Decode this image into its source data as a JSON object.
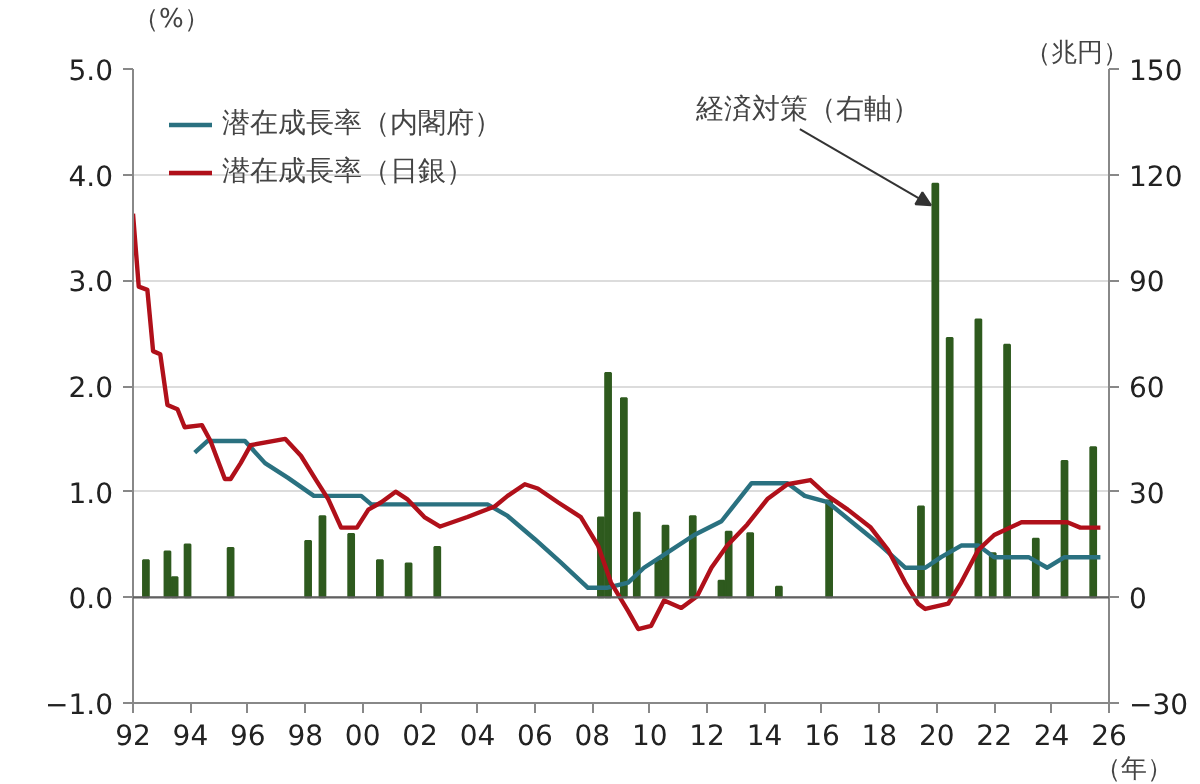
{
  "chart_data": {
    "type": "line",
    "ylabel": "（%）",
    "y2label": "（兆円）",
    "xlabel": "（年）",
    "xlim": [
      1992,
      2026
    ],
    "xticks": [
      {
        "value": 1992,
        "label": "92"
      },
      {
        "value": 1994,
        "label": "94"
      },
      {
        "value": 1996,
        "label": "96"
      },
      {
        "value": 1998,
        "label": "98"
      },
      {
        "value": 2000,
        "label": "00"
      },
      {
        "value": 2002,
        "label": "02"
      },
      {
        "value": 2004,
        "label": "04"
      },
      {
        "value": 2006,
        "label": "06"
      },
      {
        "value": 2008,
        "label": "08"
      },
      {
        "value": 2010,
        "label": "10"
      },
      {
        "value": 2012,
        "label": "12"
      },
      {
        "value": 2014,
        "label": "14"
      },
      {
        "value": 2016,
        "label": "16"
      },
      {
        "value": 2018,
        "label": "18"
      },
      {
        "value": 2020,
        "label": "20"
      },
      {
        "value": 2022,
        "label": "22"
      },
      {
        "value": 2024,
        "label": "24"
      },
      {
        "value": 2026,
        "label": "26"
      }
    ],
    "ylim": [
      -1,
      5
    ],
    "yticks": [
      {
        "value": -1,
        "label": "−1.0"
      },
      {
        "value": 0,
        "label": "0.0"
      },
      {
        "value": 1,
        "label": "1.0"
      },
      {
        "value": 2,
        "label": "2.0"
      },
      {
        "value": 3,
        "label": "3.0"
      },
      {
        "value": 4,
        "label": "4.0"
      },
      {
        "value": 5,
        "label": "5.0"
      }
    ],
    "y2lim": [
      -30,
      150
    ],
    "y2ticks": [
      {
        "value": -30,
        "label": "−30"
      },
      0,
      30,
      60,
      90,
      120,
      150
    ],
    "grid": "y",
    "legend": "top left",
    "ref_lines": [
      {
        "axis": "y",
        "value": 0,
        "color": "#606060"
      }
    ],
    "annotations": [
      {
        "text": "経済対策（右軸）",
        "x": 2019.95,
        "y": 3.91
      }
    ],
    "series": [
      {
        "name": "潜在成長率（内閣府）",
        "color": "#2a7180",
        "x": [
          1994.15,
          1994.6,
          1995.9,
          1996.6,
          1997.4,
          1998.3,
          1999.95,
          2000.3,
          2004.35,
          2005.05,
          2006.0,
          2006.9,
          2007.85,
          2008.5,
          2009.25,
          2009.8,
          2010.6,
          2011.55,
          2012.5,
          2013.55,
          2014.8,
          2015.4,
          2016.2,
          2017.15,
          2018.05,
          2018.9,
          2019.6,
          2020.15,
          2020.85,
          2021.45,
          2022.0,
          2023.2,
          2023.85,
          2024.45,
          2025.7
        ],
        "values": [
          1.37,
          1.48,
          1.48,
          1.27,
          1.13,
          0.96,
          0.96,
          0.88,
          0.88,
          0.77,
          0.55,
          0.33,
          0.09,
          0.09,
          0.14,
          0.28,
          0.42,
          0.59,
          0.72,
          1.08,
          1.08,
          0.96,
          0.9,
          0.69,
          0.49,
          0.28,
          0.28,
          0.38,
          0.49,
          0.49,
          0.38,
          0.38,
          0.28,
          0.38,
          0.38
        ]
      },
      {
        "name": "潜在成長率（日銀）",
        "color": "#b0101a",
        "x": [
          1992.0,
          1992.2,
          1992.5,
          1992.7,
          1992.95,
          1993.2,
          1993.55,
          1993.8,
          1994.4,
          1994.7,
          1995.2,
          1995.4,
          1995.75,
          1996.1,
          1997.3,
          1997.85,
          1998.4,
          1998.8,
          1999.25,
          1999.8,
          2000.2,
          2000.65,
          2001.15,
          2001.55,
          2002.15,
          2002.7,
          2003.65,
          2004.6,
          2005.05,
          2005.65,
          2006.1,
          2006.8,
          2007.6,
          2008.2,
          2008.65,
          2009.25,
          2009.6,
          2010.05,
          2010.5,
          2011.1,
          2011.65,
          2012.15,
          2012.7,
          2013.4,
          2014.1,
          2014.8,
          2015.6,
          2016.2,
          2016.9,
          2017.7,
          2018.3,
          2018.9,
          2019.35,
          2019.6,
          2020.4,
          2020.85,
          2021.45,
          2022.0,
          2022.95,
          2024.55,
          2025.0,
          2025.7
        ],
        "values": [
          3.63,
          2.94,
          2.91,
          2.33,
          2.3,
          1.82,
          1.78,
          1.61,
          1.63,
          1.48,
          1.12,
          1.12,
          1.27,
          1.44,
          1.5,
          1.34,
          1.1,
          0.93,
          0.66,
          0.66,
          0.83,
          0.9,
          1.0,
          0.93,
          0.76,
          0.67,
          0.76,
          0.86,
          0.96,
          1.07,
          1.03,
          0.9,
          0.76,
          0.49,
          0.14,
          -0.13,
          -0.3,
          -0.27,
          -0.03,
          -0.1,
          0.01,
          0.28,
          0.49,
          0.69,
          0.93,
          1.07,
          1.11,
          0.96,
          0.83,
          0.66,
          0.45,
          0.14,
          -0.06,
          -0.11,
          -0.06,
          0.14,
          0.45,
          0.59,
          0.71,
          0.71,
          0.66,
          0.66
        ]
      },
      {
        "type": "bar",
        "axis": "y2",
        "color": "#2e5a1e",
        "x": [
          1992.45,
          1993.2,
          1993.45,
          1993.9,
          1995.4,
          1998.1,
          1998.6,
          1999.6,
          2000.6,
          2001.6,
          2002.6,
          2008.3,
          2008.55,
          2009.1,
          2009.55,
          2010.3,
          2010.55,
          2011.5,
          2012.5,
          2012.75,
          2013.5,
          2014.5,
          2016.25,
          2019.45,
          2019.95,
          2020.45,
          2021.45,
          2021.95,
          2022.45,
          2023.45,
          2024.45,
          2025.45
        ],
        "values": [
          10.5,
          13,
          5.7,
          15,
          14,
          16,
          23,
          18,
          10.5,
          9.6,
          14.3,
          22.7,
          63.7,
          56.5,
          24,
          10.5,
          20.3,
          23,
          4.7,
          18.6,
          18.2,
          3,
          27.5,
          25.8,
          117.4,
          73.6,
          78.9,
          12.5,
          71.7,
          16.6,
          38.7,
          42.6
        ]
      }
    ]
  }
}
